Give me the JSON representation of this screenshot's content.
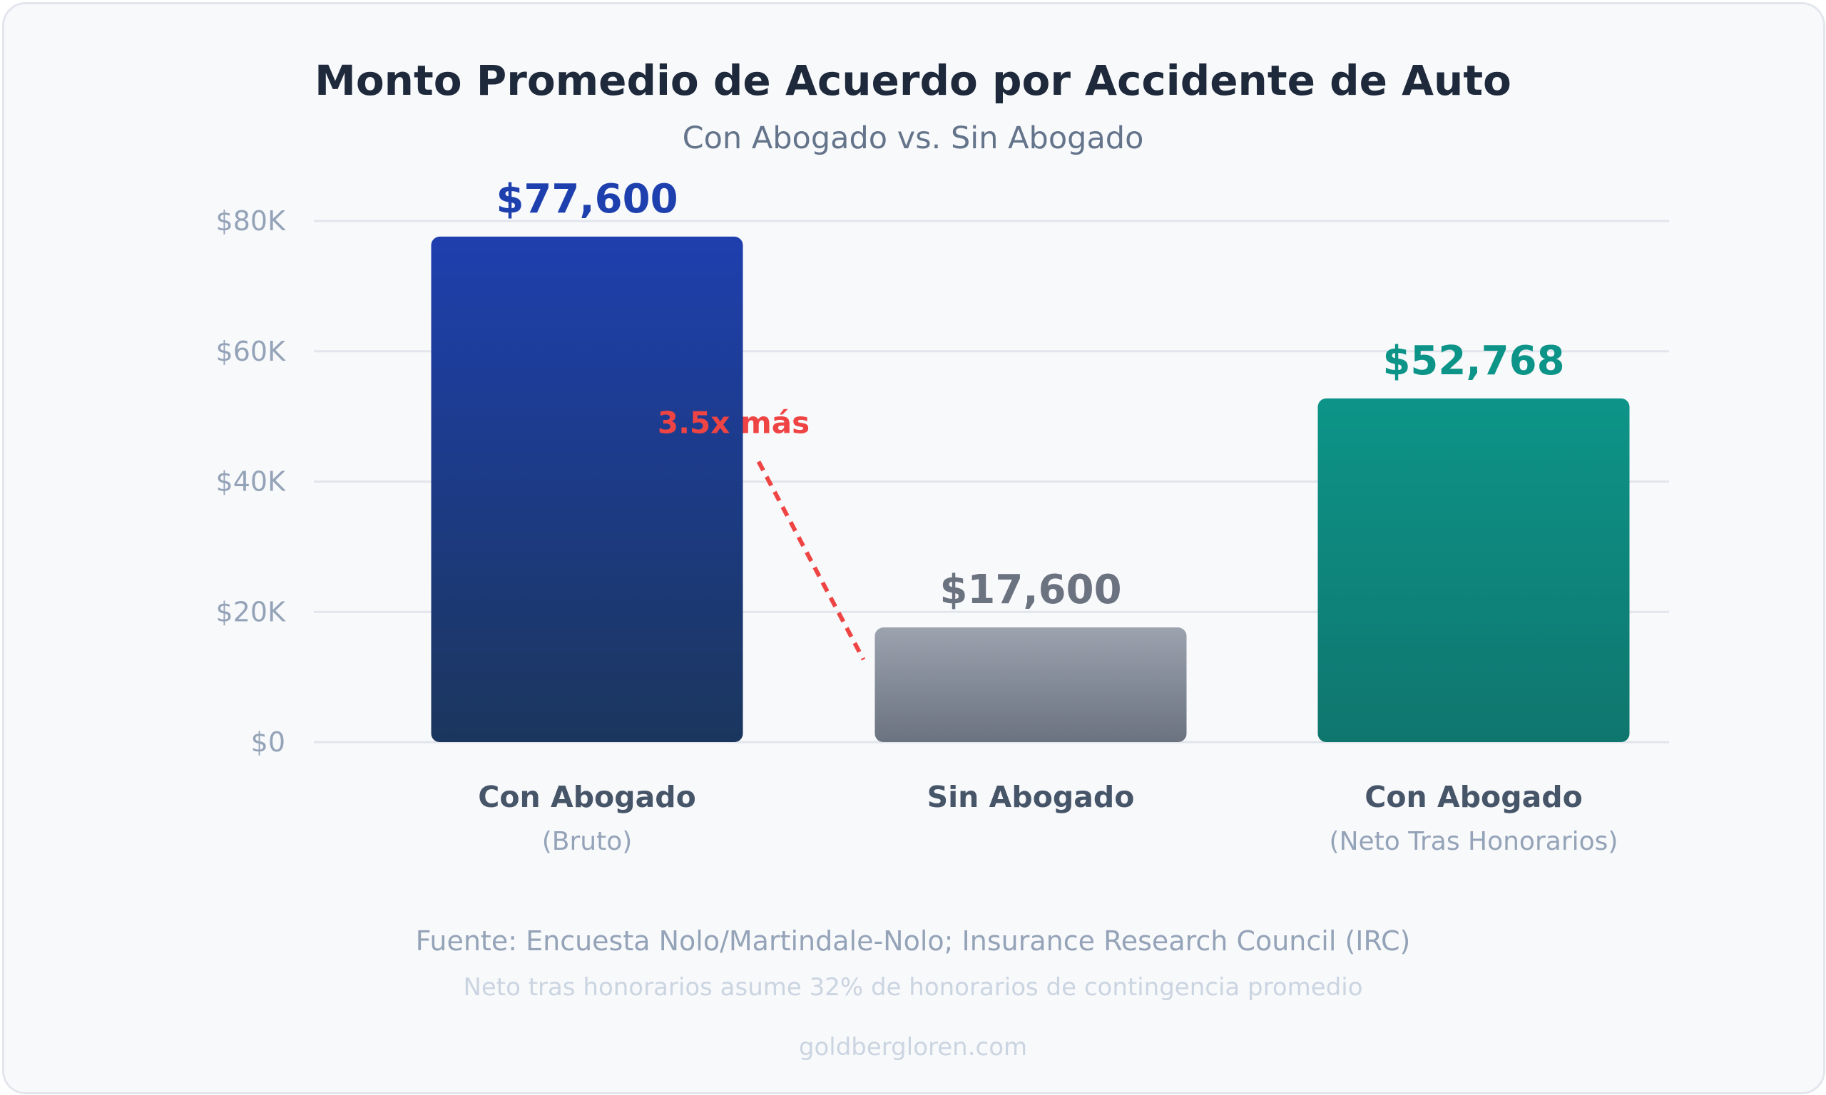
{
  "chart_data": {
    "type": "bar",
    "title": "Monto Promedio de Acuerdo por Accidente de Auto",
    "subtitle": "Con Abogado vs. Sin Abogado",
    "categories": [
      {
        "label": "Con Abogado",
        "sublabel": "(Bruto)"
      },
      {
        "label": "Sin Abogado",
        "sublabel": ""
      },
      {
        "label": "Con Abogado",
        "sublabel": "(Neto Tras Honorarios)"
      }
    ],
    "values": [
      77600,
      17600,
      52768
    ],
    "value_labels": [
      "$77,600",
      "$17,600",
      "$52,768"
    ],
    "colors": {
      "bar_1_top": "#1e3fae",
      "bar_1_bottom": "#1b365d",
      "bar_2_top": "#9ca3af",
      "bar_2_bottom": "#6b7280",
      "bar_3_top": "#0d9488",
      "bar_3_bottom": "#0f766e",
      "label_1": "#1e40af",
      "label_2": "#6b7280",
      "label_3": "#0d9488",
      "annotation": "#ef4444"
    },
    "ylim": [
      0,
      80000
    ],
    "yticks": [
      0,
      20000,
      40000,
      60000,
      80000
    ],
    "ytick_labels": [
      "$0",
      "$20K",
      "$40K",
      "$60K",
      "$80K"
    ],
    "grid": true,
    "annotation": {
      "text": "3.5x más",
      "from_category": 0,
      "to_category": 1
    }
  },
  "footer": {
    "source": "Fuente: Encuesta Nolo/Martindale-Nolo; Insurance Research Council (IRC)",
    "note": "Neto tras honorarios asume 32% de honorarios de contingencia promedio",
    "site": "goldbergloren.com"
  }
}
